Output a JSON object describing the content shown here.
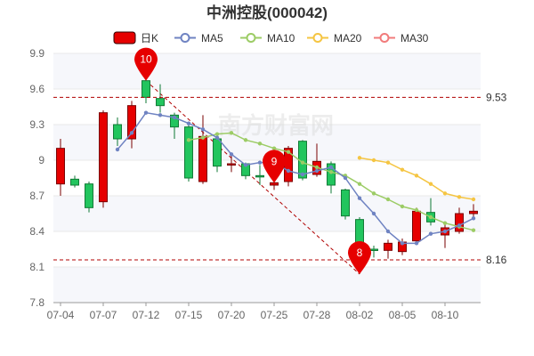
{
  "chart_data": {
    "type": "candlestick",
    "title": "中洲控股(000042)",
    "watermark": "南方财富网",
    "legend": [
      {
        "name": "日K",
        "color": "#e60000",
        "kind": "box"
      },
      {
        "name": "MA5",
        "color": "#6f83c2",
        "kind": "ring"
      },
      {
        "name": "MA10",
        "color": "#9ccc65",
        "kind": "ring"
      },
      {
        "name": "MA20",
        "color": "#f5c542",
        "kind": "ring"
      },
      {
        "name": "MA30",
        "color": "#f17b7b",
        "kind": "ring"
      }
    ],
    "colors": {
      "up": "#e60000",
      "down": "#22c55e",
      "grid": "#e8e8e8",
      "reference": "#b00000",
      "pin": "#e60000"
    },
    "ylim": [
      7.8,
      9.9
    ],
    "yticks": [
      "7.8",
      "8.1",
      "8.4",
      "8.7",
      "9",
      "9.3",
      "9.6",
      "9.9"
    ],
    "x_labels": [
      {
        "index": 0,
        "label": "07-04"
      },
      {
        "index": 3,
        "label": "07-07"
      },
      {
        "index": 6,
        "label": "07-12"
      },
      {
        "index": 9,
        "label": "07-15"
      },
      {
        "index": 12,
        "label": "07-20"
      },
      {
        "index": 15,
        "label": "07-25"
      },
      {
        "index": 18,
        "label": "07-28"
      },
      {
        "index": 21,
        "label": "08-02"
      },
      {
        "index": 24,
        "label": "08-05"
      },
      {
        "index": 27,
        "label": "08-10"
      }
    ],
    "candles": [
      {
        "o": 8.8,
        "c": 9.1,
        "h": 9.18,
        "l": 8.7
      },
      {
        "o": 8.84,
        "c": 8.79,
        "h": 8.87,
        "l": 8.77
      },
      {
        "o": 8.8,
        "c": 8.6,
        "h": 8.82,
        "l": 8.56
      },
      {
        "o": 8.65,
        "c": 9.4,
        "h": 9.42,
        "l": 8.6
      },
      {
        "o": 9.3,
        "c": 9.18,
        "h": 9.36,
        "l": 9.12
      },
      {
        "o": 9.18,
        "c": 9.46,
        "h": 9.5,
        "l": 9.1
      },
      {
        "o": 9.67,
        "c": 9.53,
        "h": 9.7,
        "l": 9.48
      },
      {
        "o": 9.52,
        "c": 9.46,
        "h": 9.64,
        "l": 9.4
      },
      {
        "o": 9.38,
        "c": 9.28,
        "h": 9.4,
        "l": 9.18
      },
      {
        "o": 9.28,
        "c": 8.85,
        "h": 9.3,
        "l": 8.82
      },
      {
        "o": 8.82,
        "c": 9.2,
        "h": 9.38,
        "l": 8.8
      },
      {
        "o": 9.18,
        "c": 8.95,
        "h": 9.22,
        "l": 8.9
      },
      {
        "o": 8.96,
        "c": 8.97,
        "h": 9.04,
        "l": 8.9
      },
      {
        "o": 8.97,
        "c": 8.87,
        "h": 8.98,
        "l": 8.84
      },
      {
        "o": 8.87,
        "c": 8.86,
        "h": 8.96,
        "l": 8.79
      },
      {
        "o": 8.79,
        "c": 8.81,
        "h": 8.87,
        "l": 8.75
      },
      {
        "o": 8.82,
        "c": 9.1,
        "h": 9.12,
        "l": 8.78
      },
      {
        "o": 9.16,
        "c": 8.85,
        "h": 9.17,
        "l": 8.83
      },
      {
        "o": 8.88,
        "c": 8.99,
        "h": 9.14,
        "l": 8.86
      },
      {
        "o": 8.97,
        "c": 8.79,
        "h": 8.99,
        "l": 8.72
      },
      {
        "o": 8.75,
        "c": 8.53,
        "h": 8.76,
        "l": 8.5
      },
      {
        "o": 8.5,
        "c": 8.25,
        "h": 8.52,
        "l": 8.04
      },
      {
        "o": 8.25,
        "c": 8.24,
        "h": 8.28,
        "l": 8.18
      },
      {
        "o": 8.24,
        "c": 8.3,
        "h": 8.33,
        "l": 8.17
      },
      {
        "o": 8.23,
        "c": 8.31,
        "h": 8.34,
        "l": 8.2
      },
      {
        "o": 8.32,
        "c": 8.57,
        "h": 8.6,
        "l": 8.3
      },
      {
        "o": 8.56,
        "c": 8.48,
        "h": 8.68,
        "l": 8.45
      },
      {
        "o": 8.37,
        "c": 8.43,
        "h": 8.48,
        "l": 8.26
      },
      {
        "o": 8.4,
        "c": 8.55,
        "h": 8.6,
        "l": 8.38
      },
      {
        "o": 8.55,
        "c": 8.57,
        "h": 8.63,
        "l": 8.5
      }
    ],
    "ma5": [
      null,
      null,
      null,
      null,
      9.09,
      9.23,
      9.4,
      9.38,
      9.36,
      9.31,
      9.26,
      9.19,
      9.05,
      8.96,
      8.98,
      8.98,
      8.91,
      8.88,
      8.91,
      8.94,
      8.85,
      8.68,
      8.55,
      8.4,
      8.3,
      8.3,
      8.38,
      8.4,
      8.45,
      8.51
    ],
    "ma10": [
      null,
      null,
      null,
      null,
      null,
      null,
      null,
      null,
      null,
      9.17,
      9.19,
      9.22,
      9.23,
      9.17,
      9.14,
      9.1,
      9.07,
      8.98,
      8.94,
      8.9,
      8.87,
      8.8,
      8.72,
      8.67,
      8.61,
      8.58,
      8.52,
      8.47,
      8.44,
      8.41
    ],
    "ma20": [
      null,
      null,
      null,
      null,
      null,
      null,
      null,
      null,
      null,
      null,
      null,
      null,
      null,
      null,
      null,
      null,
      null,
      null,
      null,
      null,
      null,
      9.02,
      9.0,
      8.98,
      8.92,
      8.87,
      8.8,
      8.72,
      8.69,
      8.67
    ],
    "ma30": [],
    "reference_lines": [
      {
        "value": 9.53,
        "label": "9.53"
      },
      {
        "value": 8.16,
        "label": "8.16"
      }
    ],
    "markers": [
      {
        "index": 6,
        "value": 9.67,
        "label": "10"
      },
      {
        "index": 15,
        "value": 8.81,
        "label": "9"
      },
      {
        "index": 21,
        "value": 8.04,
        "label": "8"
      }
    ],
    "trend_line": {
      "from": {
        "index": 6,
        "value": 9.67
      },
      "to": {
        "index": 21,
        "value": 8.04
      }
    }
  }
}
